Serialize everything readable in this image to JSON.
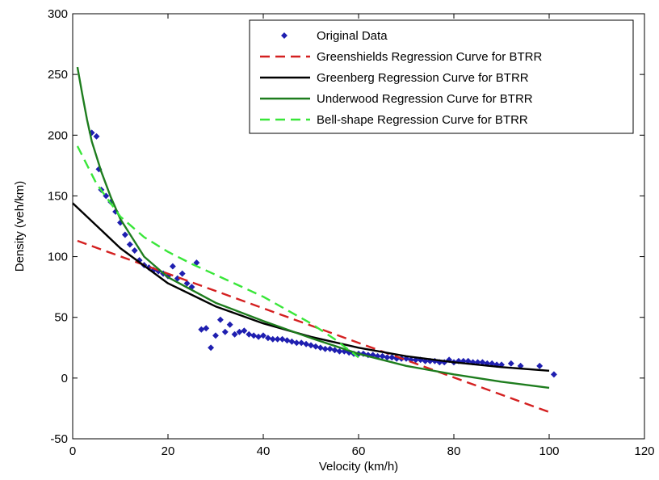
{
  "chart_data": {
    "type": "scatter",
    "xlabel": "Velocity (km/h)",
    "ylabel": "Density (veh/km)",
    "xlim": [
      0,
      120
    ],
    "ylim": [
      -50,
      300
    ],
    "xticks": [
      "0",
      "20",
      "40",
      "60",
      "80",
      "100",
      "120"
    ],
    "yticks": [
      "-50",
      "0",
      "50",
      "100",
      "150",
      "200",
      "250",
      "300"
    ],
    "grid": false,
    "legend_position": "top-right",
    "legend": [
      {
        "label": "Original Data",
        "style": "marker",
        "color": "#1f1fb0"
      },
      {
        "label": "Greenshields Regression Curve for BTRR",
        "style": "dashed",
        "color": "#d42020"
      },
      {
        "label": "Greenberg Regression Curve for BTRR",
        "style": "solid",
        "color": "#000000"
      },
      {
        "label": "Underwood Regression Curve for BTRR",
        "style": "solid",
        "color": "#1e7d1e"
      },
      {
        "label": "Bell-shape Regression Curve for BTRR",
        "style": "dashed",
        "color": "#39e639"
      }
    ],
    "series": [
      {
        "name": "Original Data",
        "kind": "points",
        "color": "#1f1fb0",
        "x": [
          4,
          5,
          5.5,
          6,
          7,
          8,
          9,
          10,
          11,
          12,
          13,
          14,
          15,
          16,
          17,
          18,
          19,
          20,
          21,
          22,
          23,
          24,
          25,
          26,
          27,
          28,
          29,
          30,
          31,
          32,
          33,
          34,
          35,
          36,
          37,
          38,
          39,
          40,
          41,
          42,
          43,
          44,
          45,
          46,
          47,
          48,
          49,
          50,
          51,
          52,
          53,
          54,
          55,
          56,
          57,
          58,
          59,
          60,
          61,
          62,
          63,
          64,
          65,
          66,
          67,
          68,
          69,
          70,
          71,
          72,
          73,
          74,
          75,
          76,
          77,
          78,
          79,
          80,
          81,
          82,
          83,
          84,
          85,
          86,
          87,
          88,
          89,
          90,
          92,
          94,
          98,
          101
        ],
        "y": [
          202,
          199,
          172,
          155,
          150,
          145,
          137,
          128,
          118,
          110,
          105,
          97,
          93,
          91,
          89,
          88,
          86,
          84,
          92,
          82,
          86,
          78,
          75,
          95,
          40,
          41,
          25,
          35,
          48,
          38,
          44,
          36,
          38,
          39,
          36,
          35,
          34,
          35,
          33,
          32,
          32,
          32,
          31,
          30,
          29,
          29,
          28,
          27,
          26,
          25,
          24,
          24,
          23,
          22,
          22,
          21,
          20,
          20,
          20,
          19,
          19,
          18,
          18,
          17,
          17,
          16,
          16,
          16,
          15,
          15,
          15,
          14,
          14,
          14,
          13,
          13,
          15,
          13,
          14,
          14,
          14,
          13,
          13,
          13,
          12,
          12,
          11,
          11,
          12,
          10,
          10,
          3
        ]
      },
      {
        "name": "Greenshields Regression Curve for BTRR",
        "kind": "line",
        "dash": "12,7",
        "color": "#d42020",
        "x": [
          1,
          100
        ],
        "y": [
          113,
          -28
        ]
      },
      {
        "name": "Greenberg Regression Curve for BTRR",
        "kind": "line",
        "dash": "",
        "color": "#000000",
        "x": [
          0,
          10,
          20,
          30,
          40,
          50,
          60,
          70,
          80,
          90,
          100
        ],
        "y": [
          144,
          107,
          78,
          59,
          45,
          34,
          25,
          18,
          13,
          9,
          6
        ]
      },
      {
        "name": "Underwood Regression Curve for BTRR",
        "kind": "line",
        "dash": "",
        "color": "#1e7d1e",
        "x": [
          1,
          2,
          3,
          4,
          6,
          8,
          10,
          15,
          20,
          30,
          40,
          50,
          60,
          70,
          80,
          90,
          100
        ],
        "y": [
          256,
          234,
          213,
          195,
          170,
          149,
          131,
          100,
          83,
          62,
          47,
          33,
          20,
          10,
          3,
          -3,
          -8
        ]
      },
      {
        "name": "Bell-shape Regression Curve for BTRR",
        "kind": "line",
        "dash": "12,7",
        "color": "#39e639",
        "x": [
          1,
          5,
          10,
          15,
          20,
          25,
          30,
          35,
          40,
          45,
          50,
          55,
          60
        ],
        "y": [
          191,
          160,
          133,
          116,
          104,
          94,
          85,
          76,
          67,
          56,
          45,
          32,
          17
        ]
      }
    ]
  }
}
